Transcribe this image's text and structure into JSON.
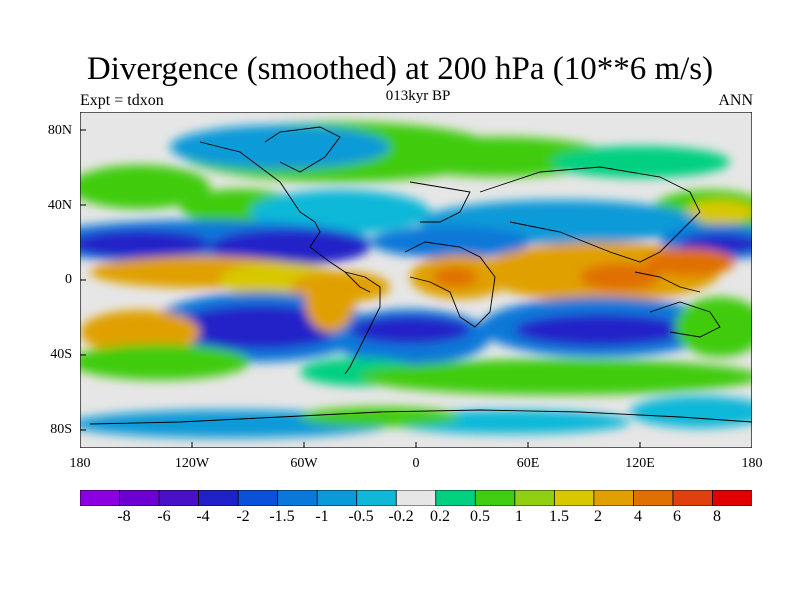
{
  "title": "Divergence (smoothed) at 200 hPa (10**6 m/s)",
  "subtitle": "013kyr BP",
  "left_label": "Expt = tdxon",
  "right_label": "ANN",
  "y_ticks": [
    "80N",
    "40N",
    "0",
    "40S",
    "80S"
  ],
  "x_ticks": [
    "180",
    "120W",
    "60W",
    "0",
    "60E",
    "120E",
    "180"
  ],
  "colorbar": {
    "labels": [
      "-8",
      "-6",
      "-4",
      "-2",
      "-1.5",
      "-1",
      "-0.5",
      "-0.2",
      "0.2",
      "0.5",
      "1",
      "1.5",
      "2",
      "4",
      "6",
      "8"
    ],
    "colors": [
      "#8a00e0",
      "#6c00d2",
      "#4a10c8",
      "#2020c8",
      "#0a50d8",
      "#0a78d8",
      "#0a9ad8",
      "#10b8d8",
      "#e6e6e6",
      "#00d080",
      "#40cc10",
      "#90d010",
      "#d8c800",
      "#e0a000",
      "#e07000",
      "#e04010",
      "#e00000"
    ]
  },
  "map": {
    "projection": "cylindrical-equidistant",
    "lon_range": [
      -180,
      180
    ],
    "lat_range": [
      -90,
      90
    ],
    "field": "200 hPa divergence",
    "coastlines": true
  }
}
